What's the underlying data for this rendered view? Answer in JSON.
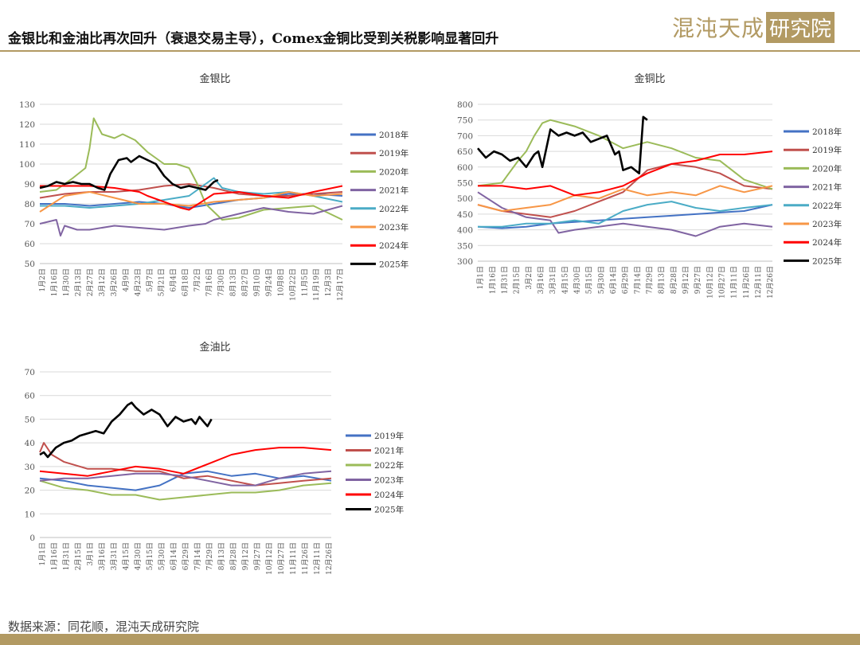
{
  "header": {
    "title": "金银比和金油比再次回升（衰退交易主导），Comex金铜比受到关税影响显著回升",
    "logo_text": "混沌天成",
    "logo_box_text": "研究院"
  },
  "footer": {
    "source": "数据来源：同花顺，混沌天成研究院"
  },
  "chart_data": [
    {
      "id": "gold-silver",
      "type": "line",
      "title": "金银比",
      "ylim": [
        50,
        130
      ],
      "yticks": [
        50,
        60,
        70,
        80,
        90,
        100,
        110,
        120,
        130
      ],
      "grid": true,
      "legend_position": "right",
      "x_tick_labels": [
        "1月2日",
        "1月16日",
        "1月30日",
        "2月13日",
        "2月27日",
        "3月12日",
        "3月26日",
        "4月9日",
        "4月23日",
        "5月7日",
        "5月21日",
        "6月4日",
        "6月18日",
        "7月2日",
        "7月16日",
        "7月30日",
        "8月13日",
        "8月27日",
        "9月10日",
        "9月24日",
        "10月8日",
        "10月22日",
        "11月5日",
        "11月19日",
        "12月3日",
        "12月17日"
      ],
      "series": [
        {
          "name": "2018年",
          "color": "#4472c4",
          "x": [
            0,
            30,
            60,
            90,
            120,
            150,
            180,
            210,
            240,
            270,
            300,
            330,
            365
          ],
          "y": [
            80,
            80,
            79,
            80,
            81,
            80,
            78,
            80,
            82,
            83,
            85,
            85,
            84
          ]
        },
        {
          "name": "2019年",
          "color": "#c0504d",
          "x": [
            0,
            30,
            60,
            90,
            120,
            150,
            180,
            210,
            240,
            270,
            300,
            330,
            365
          ],
          "y": [
            83,
            85,
            86,
            86,
            87,
            89,
            90,
            88,
            85,
            84,
            84,
            85,
            86
          ]
        },
        {
          "name": "2020年",
          "color": "#9bbb59",
          "x": [
            0,
            20,
            40,
            55,
            60,
            65,
            75,
            90,
            100,
            115,
            130,
            150,
            165,
            180,
            190,
            200,
            220,
            240,
            270,
            300,
            330,
            365
          ],
          "y": [
            86,
            87,
            93,
            98,
            108,
            123,
            115,
            113,
            115,
            112,
            106,
            100,
            100,
            98,
            90,
            80,
            72,
            73,
            77,
            78,
            79,
            72
          ]
        },
        {
          "name": "2021年",
          "color": "#8064a2",
          "x": [
            0,
            10,
            20,
            25,
            30,
            45,
            60,
            90,
            120,
            150,
            180,
            200,
            210,
            240,
            270,
            300,
            330,
            365
          ],
          "y": [
            70,
            71,
            72,
            64,
            69,
            67,
            67,
            69,
            68,
            67,
            69,
            70,
            72,
            75,
            78,
            76,
            75,
            79
          ]
        },
        {
          "name": "2022年",
          "color": "#4bacc6",
          "x": [
            0,
            30,
            60,
            90,
            120,
            150,
            180,
            200,
            210,
            220,
            240,
            270,
            300,
            330,
            365
          ],
          "y": [
            79,
            79,
            78,
            79,
            80,
            82,
            84,
            90,
            93,
            88,
            86,
            85,
            86,
            84,
            81
          ]
        },
        {
          "name": "2023年",
          "color": "#f79646",
          "x": [
            0,
            30,
            60,
            90,
            120,
            150,
            180,
            210,
            240,
            270,
            300,
            330,
            365
          ],
          "y": [
            76,
            84,
            86,
            83,
            80,
            80,
            79,
            81,
            82,
            83,
            86,
            84,
            85
          ]
        },
        {
          "name": "2024年",
          "color": "#ff0000",
          "x": [
            0,
            30,
            60,
            90,
            120,
            130,
            150,
            170,
            180,
            210,
            240,
            270,
            300,
            330,
            365
          ],
          "y": [
            89,
            89,
            89,
            88,
            86,
            84,
            81,
            78,
            77,
            85,
            86,
            84,
            83,
            86,
            89
          ]
        },
        {
          "name": "2025年",
          "color": "#000000",
          "x": [
            0,
            10,
            20,
            30,
            40,
            50,
            60,
            70,
            78,
            85,
            95,
            105,
            110,
            120,
            130,
            140,
            150,
            160,
            170,
            180,
            190,
            200,
            210,
            215
          ],
          "y": [
            88,
            89,
            91,
            90,
            91,
            90,
            90,
            88,
            87,
            95,
            102,
            103,
            101,
            104,
            102,
            100,
            94,
            90,
            88,
            89,
            88,
            87,
            91,
            92
          ]
        }
      ]
    },
    {
      "id": "gold-copper",
      "type": "line",
      "title": "金铜比",
      "ylim": [
        300,
        800
      ],
      "yticks": [
        300,
        350,
        400,
        450,
        500,
        550,
        600,
        650,
        700,
        750,
        800
      ],
      "grid": true,
      "legend_position": "right",
      "x_tick_labels": [
        "1月1日",
        "1月16日",
        "1月31日",
        "2月15日",
        "3月2日",
        "3月16日",
        "3月31日",
        "4月15日",
        "4月30日",
        "5月15日",
        "5月30日",
        "6月14日",
        "6月29日",
        "7月14日",
        "7月29日",
        "8月13日",
        "8月28日",
        "9月12日",
        "9月27日",
        "10月12日",
        "10月27日",
        "11月11日",
        "11月26日",
        "12月11日",
        "12月26日"
      ],
      "series": [
        {
          "name": "2018年",
          "color": "#4472c4",
          "x": [
            0,
            30,
            60,
            90,
            120,
            150,
            180,
            210,
            240,
            270,
            300,
            330,
            365
          ],
          "y": [
            410,
            405,
            410,
            420,
            425,
            430,
            435,
            440,
            445,
            450,
            455,
            460,
            480
          ]
        },
        {
          "name": "2019年",
          "color": "#c0504d",
          "x": [
            0,
            30,
            60,
            90,
            120,
            150,
            180,
            210,
            240,
            270,
            300,
            330,
            365
          ],
          "y": [
            480,
            460,
            450,
            440,
            460,
            490,
            520,
            590,
            610,
            600,
            580,
            540,
            530
          ]
        },
        {
          "name": "2020年",
          "color": "#9bbb59",
          "x": [
            0,
            30,
            50,
            60,
            70,
            80,
            90,
            105,
            120,
            150,
            180,
            210,
            240,
            270,
            300,
            330,
            365
          ],
          "y": [
            540,
            550,
            620,
            650,
            700,
            740,
            750,
            740,
            730,
            700,
            660,
            680,
            660,
            630,
            620,
            560,
            530
          ]
        },
        {
          "name": "2021年",
          "color": "#8064a2",
          "x": [
            0,
            30,
            60,
            90,
            100,
            120,
            150,
            180,
            210,
            240,
            270,
            300,
            330,
            365
          ],
          "y": [
            520,
            470,
            440,
            430,
            390,
            400,
            410,
            420,
            410,
            400,
            380,
            410,
            420,
            410
          ]
        },
        {
          "name": "2022年",
          "color": "#4bacc6",
          "x": [
            0,
            30,
            60,
            90,
            120,
            150,
            180,
            210,
            240,
            270,
            300,
            330,
            365
          ],
          "y": [
            410,
            410,
            420,
            420,
            430,
            420,
            460,
            480,
            490,
            470,
            460,
            470,
            480
          ]
        },
        {
          "name": "2023年",
          "color": "#f79646",
          "x": [
            0,
            30,
            60,
            90,
            120,
            150,
            180,
            210,
            240,
            270,
            300,
            330,
            365
          ],
          "y": [
            480,
            460,
            470,
            480,
            510,
            500,
            530,
            510,
            520,
            510,
            540,
            520,
            540
          ]
        },
        {
          "name": "2024年",
          "color": "#ff0000",
          "x": [
            0,
            30,
            60,
            90,
            120,
            150,
            180,
            210,
            240,
            270,
            300,
            330,
            365
          ],
          "y": [
            540,
            540,
            530,
            540,
            510,
            520,
            540,
            580,
            610,
            620,
            640,
            640,
            650
          ]
        },
        {
          "name": "2025年",
          "color": "#000000",
          "x": [
            0,
            10,
            20,
            30,
            40,
            50,
            60,
            70,
            75,
            80,
            90,
            100,
            110,
            120,
            130,
            140,
            150,
            160,
            170,
            175,
            180,
            190,
            200,
            205,
            210
          ],
          "y": [
            660,
            630,
            650,
            640,
            620,
            630,
            600,
            640,
            650,
            600,
            720,
            700,
            710,
            700,
            710,
            680,
            690,
            700,
            640,
            650,
            590,
            600,
            580,
            760,
            750
          ]
        }
      ]
    },
    {
      "id": "gold-oil",
      "type": "line",
      "title": "金油比",
      "ylim": [
        0,
        70
      ],
      "yticks": [
        0,
        10,
        20,
        30,
        40,
        50,
        60,
        70
      ],
      "grid": true,
      "legend_position": "right",
      "x_tick_labels": [
        "1月1日",
        "1月16日",
        "1月31日",
        "2月15日",
        "3月1日",
        "3月16日",
        "3月31日",
        "4月15日",
        "4月30日",
        "5月15日",
        "5月30日",
        "6月14日",
        "6月29日",
        "7月14日",
        "7月29日",
        "8月13日",
        "8月28日",
        "9月12日",
        "9月27日",
        "10月12日",
        "10月27日",
        "11月11日",
        "11月26日",
        "12月11日",
        "12月26日"
      ],
      "series": [
        {
          "name": "2019年",
          "color": "#4472c4",
          "x": [
            0,
            30,
            60,
            90,
            120,
            150,
            180,
            210,
            240,
            270,
            300,
            330,
            365
          ],
          "y": [
            25,
            24,
            22,
            21,
            20,
            22,
            27,
            28,
            26,
            27,
            25,
            26,
            24
          ]
        },
        {
          "name": "2021年",
          "color": "#c0504d",
          "x": [
            0,
            5,
            15,
            30,
            60,
            90,
            120,
            150,
            180,
            210,
            240,
            270,
            300,
            330,
            365
          ],
          "y": [
            36,
            40,
            35,
            32,
            29,
            29,
            28,
            28,
            25,
            26,
            24,
            22,
            23,
            24,
            25
          ]
        },
        {
          "name": "2022年",
          "color": "#9bbb59",
          "x": [
            0,
            30,
            60,
            90,
            120,
            150,
            180,
            210,
            240,
            270,
            300,
            330,
            365
          ],
          "y": [
            24,
            21,
            20,
            18,
            18,
            16,
            17,
            18,
            19,
            19,
            20,
            22,
            23
          ]
        },
        {
          "name": "2023年",
          "color": "#8064a2",
          "x": [
            0,
            30,
            60,
            90,
            120,
            150,
            180,
            210,
            240,
            270,
            300,
            330,
            365
          ],
          "y": [
            24,
            25,
            25,
            26,
            27,
            27,
            26,
            24,
            22,
            22,
            25,
            27,
            28
          ]
        },
        {
          "name": "2024年",
          "color": "#ff0000",
          "x": [
            0,
            30,
            60,
            90,
            120,
            150,
            180,
            210,
            240,
            270,
            300,
            330,
            365
          ],
          "y": [
            28,
            27,
            26,
            28,
            30,
            29,
            27,
            31,
            35,
            37,
            38,
            38,
            37
          ]
        },
        {
          "name": "2025年",
          "color": "#000000",
          "x": [
            0,
            5,
            10,
            20,
            30,
            40,
            50,
            60,
            70,
            80,
            90,
            100,
            110,
            115,
            120,
            130,
            140,
            150,
            160,
            170,
            180,
            190,
            195,
            200,
            210,
            215
          ],
          "y": [
            35,
            36,
            34,
            38,
            40,
            41,
            43,
            44,
            45,
            44,
            49,
            52,
            56,
            57,
            55,
            52,
            54,
            52,
            47,
            51,
            49,
            50,
            48,
            51,
            47,
            50
          ]
        }
      ]
    }
  ]
}
